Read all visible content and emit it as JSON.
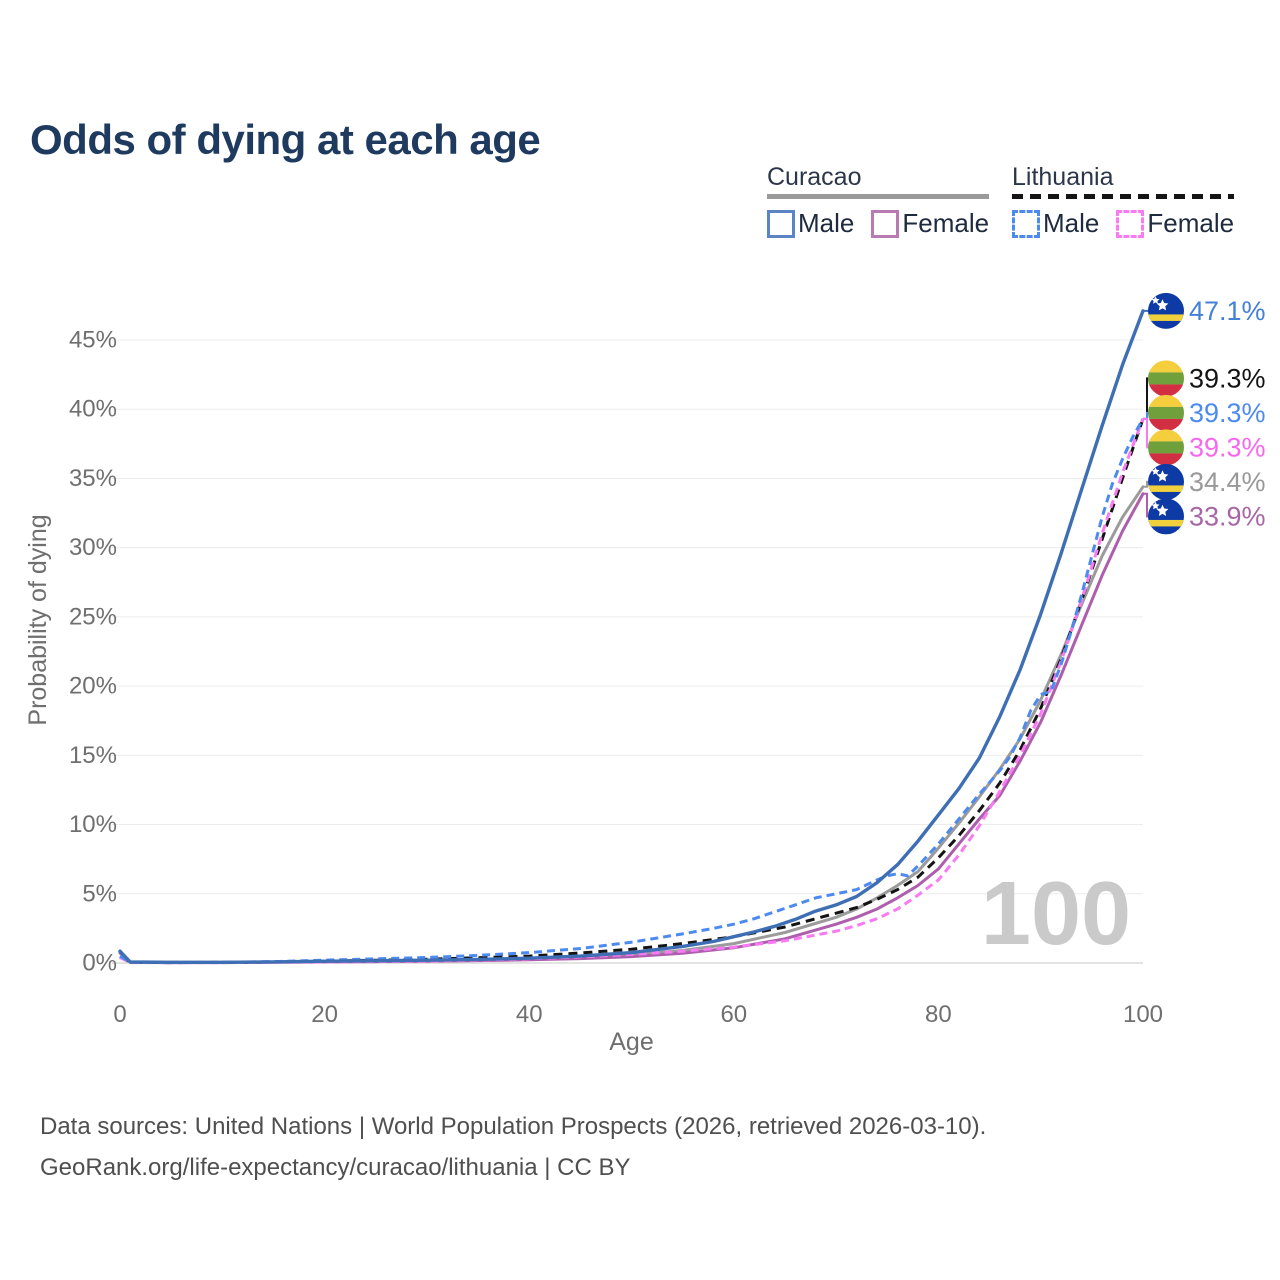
{
  "title": "Odds of dying at each age",
  "legend": {
    "groups": [
      {
        "title": "Curacao",
        "underline_style": "solid",
        "underline_color": "#9a9a9a",
        "items": [
          {
            "label": "Male",
            "swatch_color": "#5b84c4",
            "swatch_style": "solid"
          },
          {
            "label": "Female",
            "swatch_color": "#b979b1",
            "swatch_style": "solid"
          }
        ]
      },
      {
        "title": "Lithuania",
        "underline_style": "dashed",
        "underline_color": "#141414",
        "items": [
          {
            "label": "Male",
            "swatch_color": "#4d8af0",
            "swatch_style": "dashed"
          },
          {
            "label": "Female",
            "swatch_color": "#f97af2",
            "swatch_style": "dashed"
          }
        ]
      }
    ]
  },
  "chart_data": {
    "type": "line",
    "title": "Odds of dying at each age",
    "xlabel": "Age",
    "ylabel": "Probability of dying",
    "xlim": [
      0,
      100
    ],
    "ylim": [
      0,
      47.5
    ],
    "xticks": [
      0,
      20,
      40,
      60,
      80,
      100
    ],
    "yticks": [
      0,
      5,
      10,
      15,
      20,
      25,
      30,
      35,
      40,
      45
    ],
    "ytick_suffix": "%",
    "grid": true,
    "watermark": "100",
    "series": [
      {
        "name": "Curacao Male",
        "country": "curacao",
        "sex": "male",
        "color": "#3e6fb4",
        "label_color": "#4380d8",
        "dash": null,
        "end_label": "47.1%",
        "points": [
          [
            0,
            0.85
          ],
          [
            1,
            0.07
          ],
          [
            5,
            0.05
          ],
          [
            10,
            0.05
          ],
          [
            15,
            0.08
          ],
          [
            20,
            0.13
          ],
          [
            25,
            0.16
          ],
          [
            30,
            0.2
          ],
          [
            35,
            0.26
          ],
          [
            40,
            0.35
          ],
          [
            45,
            0.5
          ],
          [
            50,
            0.75
          ],
          [
            55,
            1.2
          ],
          [
            58,
            1.55
          ],
          [
            60,
            1.9
          ],
          [
            62,
            2.25
          ],
          [
            64,
            2.65
          ],
          [
            66,
            3.15
          ],
          [
            68,
            3.75
          ],
          [
            70,
            4.2
          ],
          [
            72,
            4.8
          ],
          [
            74,
            5.8
          ],
          [
            76,
            7.1
          ],
          [
            78,
            8.8
          ],
          [
            80,
            10.7
          ],
          [
            82,
            12.6
          ],
          [
            84,
            14.8
          ],
          [
            86,
            17.8
          ],
          [
            88,
            21.2
          ],
          [
            90,
            25.2
          ],
          [
            92,
            29.6
          ],
          [
            94,
            34.2
          ],
          [
            96,
            38.8
          ],
          [
            98,
            43.2
          ],
          [
            100,
            47.1
          ]
        ]
      },
      {
        "name": "Lithuania Both sexes",
        "country": "lithuania",
        "sex": "both",
        "color": "#141414",
        "label_color": "#141414",
        "dash": "9 6",
        "end_label": "39.3%",
        "points": [
          [
            0,
            0.45
          ],
          [
            1,
            0.04
          ],
          [
            5,
            0.03
          ],
          [
            10,
            0.04
          ],
          [
            15,
            0.07
          ],
          [
            20,
            0.13
          ],
          [
            25,
            0.2
          ],
          [
            30,
            0.27
          ],
          [
            35,
            0.38
          ],
          [
            40,
            0.5
          ],
          [
            45,
            0.72
          ],
          [
            50,
            1.0
          ],
          [
            55,
            1.4
          ],
          [
            60,
            1.9
          ],
          [
            65,
            2.6
          ],
          [
            70,
            3.6
          ],
          [
            72,
            4.0
          ],
          [
            74,
            4.6
          ],
          [
            76,
            5.3
          ],
          [
            78,
            6.2
          ],
          [
            80,
            7.6
          ],
          [
            82,
            9.2
          ],
          [
            84,
            11.0
          ],
          [
            86,
            13.0
          ],
          [
            88,
            15.4
          ],
          [
            90,
            18.4
          ],
          [
            92,
            22.0
          ],
          [
            94,
            26.2
          ],
          [
            96,
            30.6
          ],
          [
            98,
            35.0
          ],
          [
            100,
            39.3
          ]
        ]
      },
      {
        "name": "Lithuania Male",
        "country": "lithuania",
        "sex": "male",
        "color": "#4d8af0",
        "label_color": "#4d8af0",
        "dash": "8 5",
        "end_label": "39.3%",
        "points": [
          [
            0,
            0.5
          ],
          [
            1,
            0.05
          ],
          [
            5,
            0.04
          ],
          [
            10,
            0.05
          ],
          [
            15,
            0.1
          ],
          [
            20,
            0.2
          ],
          [
            25,
            0.3
          ],
          [
            30,
            0.4
          ],
          [
            35,
            0.55
          ],
          [
            40,
            0.75
          ],
          [
            45,
            1.05
          ],
          [
            50,
            1.5
          ],
          [
            55,
            2.1
          ],
          [
            58,
            2.5
          ],
          [
            60,
            2.8
          ],
          [
            62,
            3.2
          ],
          [
            64,
            3.7
          ],
          [
            66,
            4.2
          ],
          [
            68,
            4.7
          ],
          [
            70,
            5.0
          ],
          [
            72,
            5.3
          ],
          [
            74,
            6.0
          ],
          [
            75,
            6.3
          ],
          [
            76,
            6.45
          ],
          [
            77,
            6.3
          ],
          [
            78,
            7.0
          ],
          [
            80,
            8.6
          ],
          [
            82,
            10.4
          ],
          [
            84,
            12.2
          ],
          [
            86,
            13.9
          ],
          [
            87,
            14.9
          ],
          [
            88,
            16.3
          ],
          [
            89,
            18.2
          ],
          [
            90,
            19.4
          ],
          [
            91,
            19.6
          ],
          [
            92,
            21.6
          ],
          [
            93,
            24.0
          ],
          [
            94,
            26.6
          ],
          [
            95,
            29.4
          ],
          [
            96,
            32.2
          ],
          [
            97,
            34.6
          ],
          [
            98,
            36.4
          ],
          [
            99,
            38.0
          ],
          [
            100,
            39.3
          ]
        ]
      },
      {
        "name": "Lithuania Female",
        "country": "lithuania",
        "sex": "female",
        "color": "#f97af2",
        "label_color": "#f768ef",
        "dash": "8 5",
        "end_label": "39.3%",
        "points": [
          [
            0,
            0.4
          ],
          [
            1,
            0.03
          ],
          [
            5,
            0.03
          ],
          [
            10,
            0.03
          ],
          [
            15,
            0.05
          ],
          [
            20,
            0.07
          ],
          [
            25,
            0.1
          ],
          [
            30,
            0.14
          ],
          [
            35,
            0.21
          ],
          [
            40,
            0.3
          ],
          [
            45,
            0.44
          ],
          [
            50,
            0.62
          ],
          [
            55,
            0.85
          ],
          [
            60,
            1.15
          ],
          [
            65,
            1.6
          ],
          [
            70,
            2.3
          ],
          [
            72,
            2.7
          ],
          [
            74,
            3.2
          ],
          [
            76,
            3.9
          ],
          [
            78,
            4.9
          ],
          [
            80,
            6.0
          ],
          [
            82,
            7.8
          ],
          [
            84,
            9.9
          ],
          [
            86,
            12.4
          ],
          [
            88,
            15.0
          ],
          [
            90,
            18.0
          ],
          [
            92,
            21.8
          ],
          [
            94,
            26.2
          ],
          [
            96,
            31.0
          ],
          [
            98,
            35.4
          ],
          [
            100,
            39.3
          ]
        ]
      },
      {
        "name": "Curacao Both sexes",
        "country": "curacao",
        "sex": "both",
        "color": "#9b9b9b",
        "label_color": "#999999",
        "dash": null,
        "end_label": "34.4%",
        "points": [
          [
            0,
            0.78
          ],
          [
            1,
            0.06
          ],
          [
            5,
            0.04
          ],
          [
            10,
            0.04
          ],
          [
            15,
            0.07
          ],
          [
            20,
            0.11
          ],
          [
            25,
            0.14
          ],
          [
            30,
            0.17
          ],
          [
            35,
            0.22
          ],
          [
            40,
            0.28
          ],
          [
            45,
            0.4
          ],
          [
            50,
            0.58
          ],
          [
            55,
            0.9
          ],
          [
            60,
            1.4
          ],
          [
            65,
            2.2
          ],
          [
            70,
            3.3
          ],
          [
            72,
            3.9
          ],
          [
            74,
            4.7
          ],
          [
            76,
            5.6
          ],
          [
            78,
            6.6
          ],
          [
            80,
            8.3
          ],
          [
            82,
            10.1
          ],
          [
            84,
            12.0
          ],
          [
            86,
            14.0
          ],
          [
            88,
            16.2
          ],
          [
            90,
            19.0
          ],
          [
            92,
            22.3
          ],
          [
            94,
            25.9
          ],
          [
            96,
            29.4
          ],
          [
            98,
            32.2
          ],
          [
            100,
            34.4
          ]
        ]
      },
      {
        "name": "Curacao Female",
        "country": "curacao",
        "sex": "female",
        "color": "#ad5fad",
        "label_color": "#a766a7",
        "dash": null,
        "end_label": "33.9%",
        "points": [
          [
            0,
            0.72
          ],
          [
            1,
            0.05
          ],
          [
            5,
            0.03
          ],
          [
            10,
            0.03
          ],
          [
            15,
            0.05
          ],
          [
            20,
            0.08
          ],
          [
            25,
            0.1
          ],
          [
            30,
            0.13
          ],
          [
            35,
            0.17
          ],
          [
            40,
            0.23
          ],
          [
            45,
            0.32
          ],
          [
            50,
            0.46
          ],
          [
            55,
            0.7
          ],
          [
            60,
            1.1
          ],
          [
            65,
            1.75
          ],
          [
            70,
            2.8
          ],
          [
            72,
            3.3
          ],
          [
            74,
            3.9
          ],
          [
            76,
            4.7
          ],
          [
            78,
            5.6
          ],
          [
            80,
            6.8
          ],
          [
            82,
            8.6
          ],
          [
            84,
            10.4
          ],
          [
            86,
            12.1
          ],
          [
            88,
            14.6
          ],
          [
            90,
            17.4
          ],
          [
            92,
            20.8
          ],
          [
            94,
            24.4
          ],
          [
            96,
            28.0
          ],
          [
            98,
            31.2
          ],
          [
            100,
            33.9
          ]
        ]
      }
    ],
    "flag_colors": {
      "curacao": {
        "field": "#0d3aa5",
        "stripe": "#f0d03c",
        "stars": "#ffffff"
      },
      "lithuania": {
        "top": "#f5ce3e",
        "middle": "#6fa03c",
        "bottom": "#d22f42"
      }
    }
  },
  "footer": {
    "line1": "Data sources: United Nations | World Population Prospects (2026, retrieved 2026-03-10).",
    "line2": "GeoRank.org/life-expectancy/curacao/lithuania | CC BY"
  }
}
